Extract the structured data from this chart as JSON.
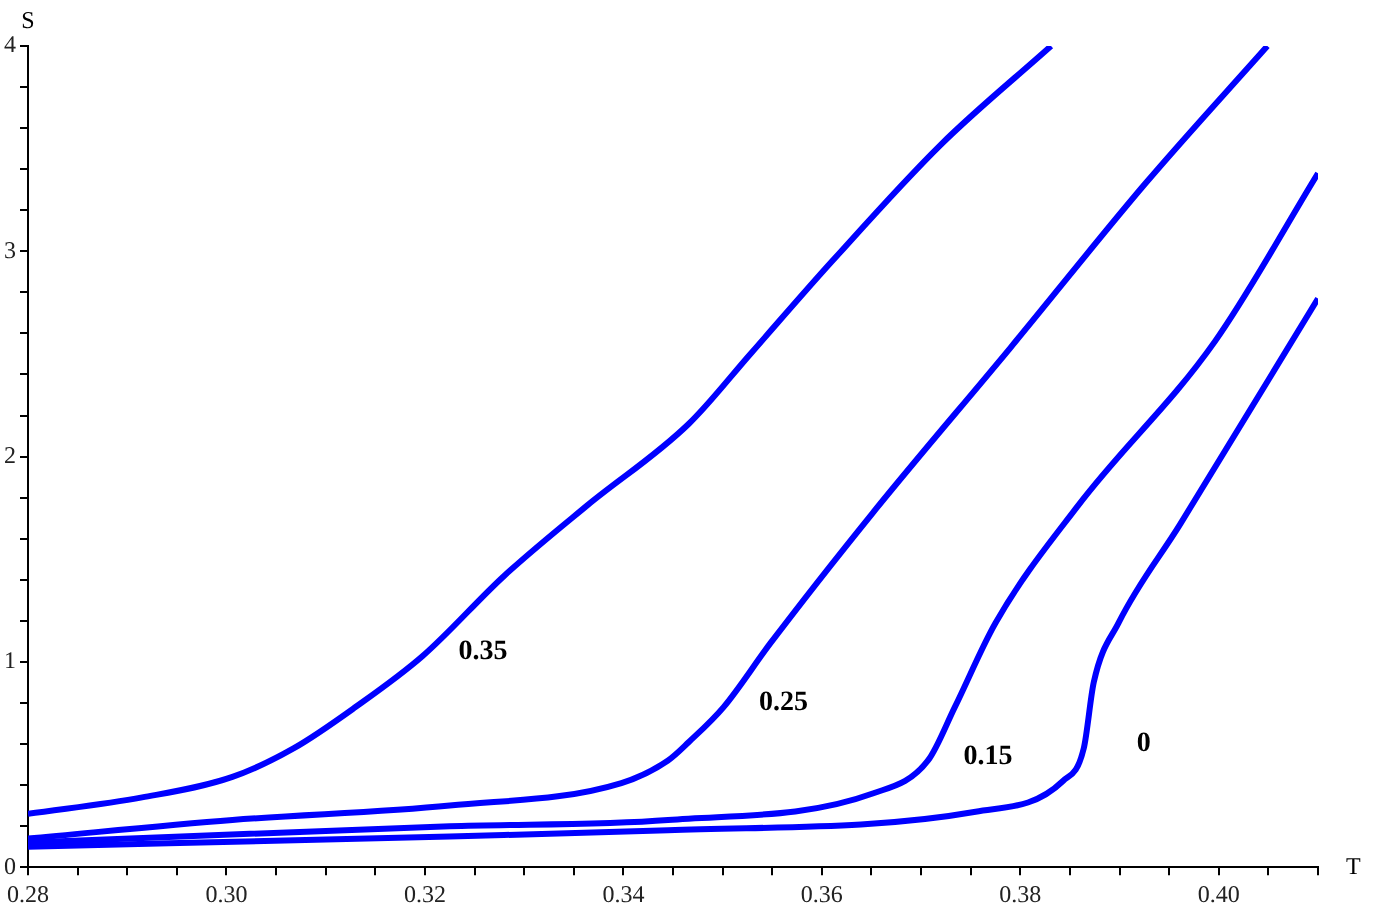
{
  "chart_data": {
    "type": "line",
    "xlabel": "T",
    "ylabel": "S",
    "xlim": [
      0.28,
      0.41
    ],
    "ylim": [
      0,
      4
    ],
    "xticks": [
      {
        "value": 0.28,
        "label": "0.28"
      },
      {
        "value": 0.285,
        "label": null
      },
      {
        "value": 0.29,
        "label": null
      },
      {
        "value": 0.295,
        "label": null
      },
      {
        "value": 0.3,
        "label": "0.30"
      },
      {
        "value": 0.305,
        "label": null
      },
      {
        "value": 0.31,
        "label": null
      },
      {
        "value": 0.315,
        "label": null
      },
      {
        "value": 0.32,
        "label": "0.32"
      },
      {
        "value": 0.325,
        "label": null
      },
      {
        "value": 0.33,
        "label": null
      },
      {
        "value": 0.335,
        "label": null
      },
      {
        "value": 0.34,
        "label": "0.34"
      },
      {
        "value": 0.345,
        "label": null
      },
      {
        "value": 0.35,
        "label": null
      },
      {
        "value": 0.355,
        "label": null
      },
      {
        "value": 0.36,
        "label": "0.36"
      },
      {
        "value": 0.365,
        "label": null
      },
      {
        "value": 0.37,
        "label": null
      },
      {
        "value": 0.375,
        "label": null
      },
      {
        "value": 0.38,
        "label": "0.38"
      },
      {
        "value": 0.385,
        "label": null
      },
      {
        "value": 0.39,
        "label": null
      },
      {
        "value": 0.395,
        "label": null
      },
      {
        "value": 0.4,
        "label": "0.40"
      },
      {
        "value": 0.405,
        "label": null
      },
      {
        "value": 0.41,
        "label": null
      }
    ],
    "yticks": [
      0,
      {
        "value": 0.2,
        "label": null
      },
      {
        "value": 0.4,
        "label": null
      },
      {
        "value": 0.6,
        "label": null
      },
      {
        "value": 0.8,
        "label": null
      },
      1,
      {
        "value": 1.2,
        "label": null
      },
      {
        "value": 1.4,
        "label": null
      },
      {
        "value": 1.6,
        "label": null
      },
      {
        "value": 1.8,
        "label": null
      },
      2,
      {
        "value": 2.2,
        "label": null
      },
      {
        "value": 2.4,
        "label": null
      },
      {
        "value": 2.6,
        "label": null
      },
      {
        "value": 2.8,
        "label": null
      },
      3,
      {
        "value": 3.2,
        "label": null
      },
      {
        "value": 3.4,
        "label": null
      },
      {
        "value": 3.6,
        "label": null
      },
      {
        "value": 3.8,
        "label": null
      },
      4
    ],
    "grid": false,
    "legend": false,
    "marker": "none",
    "line_style": "solid",
    "series": [
      {
        "name": "0.35",
        "color": "#0000ff",
        "x": [
          0.28,
          0.2915,
          0.3006,
          0.3068,
          0.313,
          0.3198,
          0.328,
          0.3363,
          0.3466,
          0.3528,
          0.361,
          0.372,
          0.3831
        ],
        "values": [
          0.26,
          0.34,
          0.44,
          0.58,
          0.78,
          1.03,
          1.42,
          1.76,
          2.16,
          2.5,
          2.95,
          3.52,
          4.0
        ]
      },
      {
        "name": "0.25",
        "color": "#0000ff",
        "x": [
          0.28,
          0.3006,
          0.3225,
          0.3398,
          0.3445,
          0.3466,
          0.3501,
          0.3548,
          0.3652,
          0.379,
          0.3926,
          0.4049
        ],
        "values": [
          0.14,
          0.23,
          0.3,
          0.41,
          0.52,
          0.61,
          0.78,
          1.09,
          1.73,
          2.53,
          3.33,
          4.0
        ]
      },
      {
        "name": "0.15",
        "color": "#0000ff",
        "x": [
          0.28,
          0.3225,
          0.3445,
          0.3652,
          0.3707,
          0.3734,
          0.3775,
          0.3858,
          0.3996,
          0.41
        ],
        "values": [
          0.12,
          0.2,
          0.23,
          0.36,
          0.52,
          0.78,
          1.19,
          1.76,
          2.56,
          3.38
        ]
      },
      {
        "name": "0",
        "color": "#0000ff",
        "x": [
          0.28,
          0.3225,
          0.3445,
          0.3755,
          0.3843,
          0.3864,
          0.3874,
          0.3899,
          0.3961,
          0.41
        ],
        "values": [
          0.1,
          0.15,
          0.18,
          0.27,
          0.42,
          0.58,
          0.9,
          1.19,
          1.67,
          2.77
        ]
      }
    ]
  }
}
